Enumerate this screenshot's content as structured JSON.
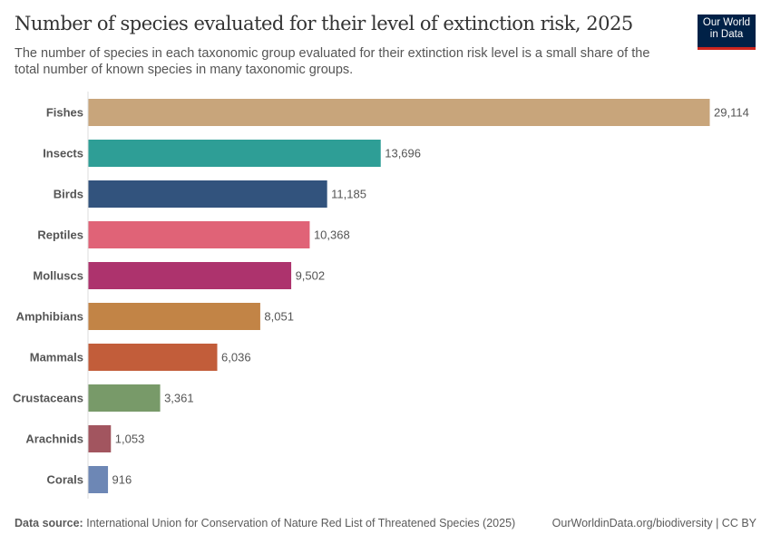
{
  "header": {
    "title": "Number of species evaluated for their level of extinction risk, 2025",
    "subtitle": "The number of species in each taxonomic group evaluated for their extinction risk level is a small share of the total number of known species in many taxonomic groups.",
    "logo_text": "Our World in Data"
  },
  "footer": {
    "source_label": "Data source:",
    "source": "International Union for Conservation of Nature Red List of Threatened Species (2025)",
    "url": "OurWorldinData.org/biodiversity | CC BY"
  },
  "chart_data": {
    "type": "bar",
    "orientation": "horizontal",
    "title": "Number of species evaluated for their level of extinction risk, 2025",
    "categories": [
      "Fishes",
      "Insects",
      "Birds",
      "Reptiles",
      "Molluscs",
      "Amphibians",
      "Mammals",
      "Crustaceans",
      "Arachnids",
      "Corals"
    ],
    "values": [
      29114,
      13696,
      11185,
      10368,
      9502,
      8051,
      6036,
      3361,
      1053,
      916
    ],
    "value_labels": [
      "29,114",
      "13,696",
      "11,185",
      "10,368",
      "9,502",
      "8,051",
      "6,036",
      "3,361",
      "1,053",
      "916"
    ],
    "colors": [
      "#C8A57B",
      "#2E9E96",
      "#32537D",
      "#E06377",
      "#AD336D",
      "#C28446",
      "#C25D3A",
      "#789A69",
      "#A2555F",
      "#6D87B5"
    ],
    "xlim": [
      0,
      29114
    ],
    "grid": false
  }
}
